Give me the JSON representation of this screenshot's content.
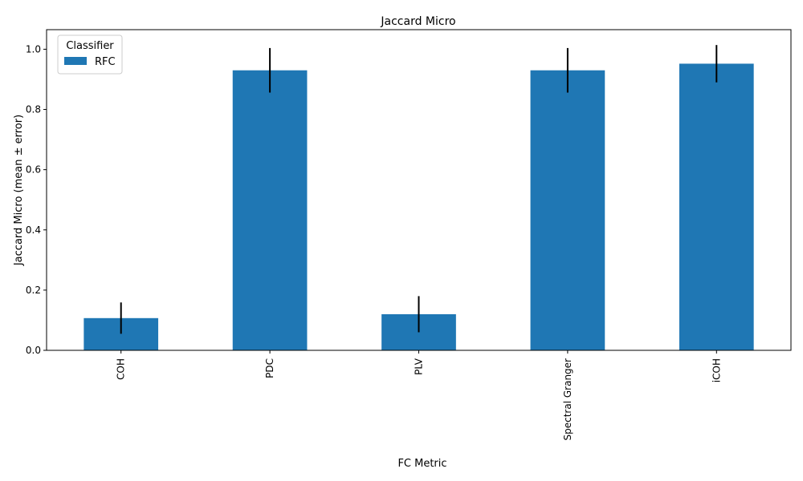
{
  "chart_data": {
    "type": "bar",
    "title": "Jaccard Micro",
    "xlabel": "FC Metric",
    "ylabel": "Jaccard Micro (mean ± error)",
    "categories": [
      "COH",
      "PDC",
      "PLV",
      "Spectral Granger",
      "iCOH"
    ],
    "series": [
      {
        "name": "RFC",
        "values": [
          0.107,
          0.93,
          0.12,
          0.93,
          0.952
        ],
        "errors": [
          0.052,
          0.074,
          0.06,
          0.074,
          0.062
        ]
      }
    ],
    "ylim": [
      0,
      1.065
    ],
    "yticks": [
      0.0,
      0.2,
      0.4,
      0.6,
      0.8,
      1.0
    ],
    "ytick_labels": [
      "0.0",
      "0.2",
      "0.4",
      "0.6",
      "0.8",
      "1.0"
    ],
    "grid": false,
    "legend": {
      "title": "Classifier",
      "placement": "upper-left"
    },
    "colors": {
      "bar": "#1f77b4",
      "error_bar": "#000000",
      "axes": "#000000"
    }
  }
}
